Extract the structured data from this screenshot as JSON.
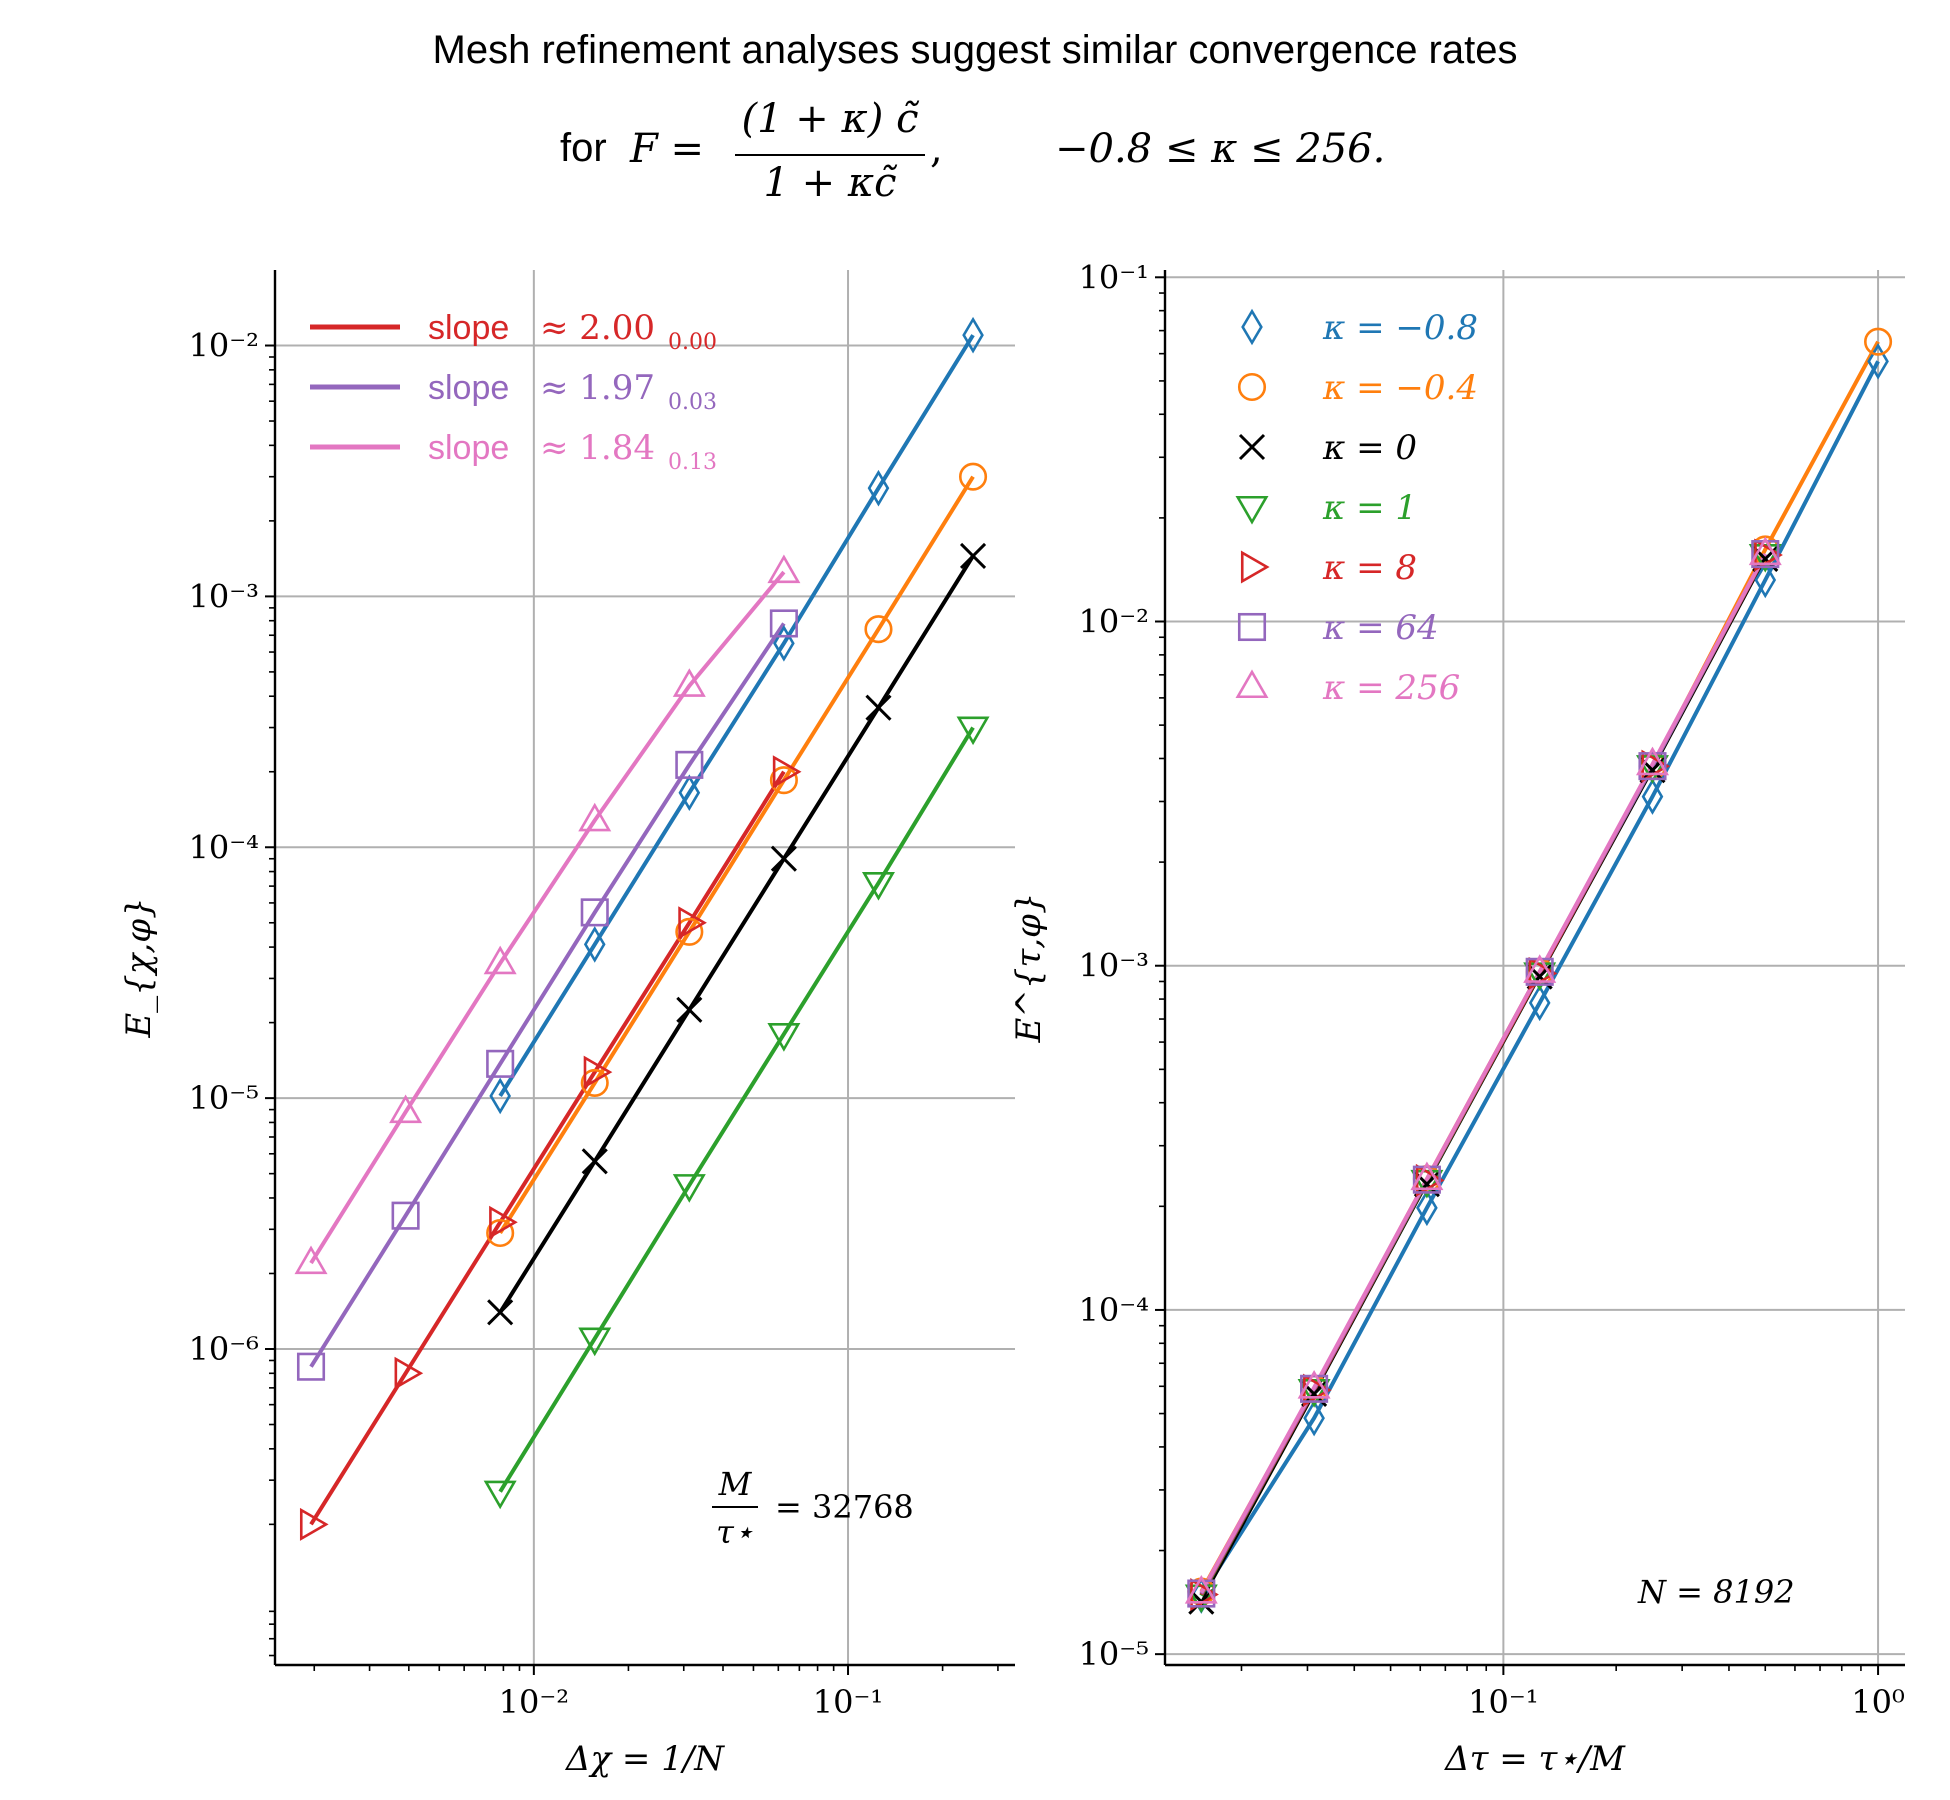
{
  "title": {
    "line1": "Mesh refinement analyses suggest similar convergence rates",
    "for_word": "for",
    "F_lhs": "F =",
    "num": "(1 + κ) c̃",
    "den": "1 + κc̃",
    "comma": ",",
    "range": "−0.8 ≤ κ ≤ 256."
  },
  "colors": {
    "blue": "#1f77b4",
    "orange": "#ff7f0e",
    "black": "#000000",
    "green": "#2ca02c",
    "red": "#d62728",
    "purple": "#9467bd",
    "pink": "#e377c2"
  },
  "chart_data": [
    {
      "type": "scatter",
      "xlabel": "Δχ = 1/N",
      "ylabel": "E_{χ,φ}",
      "xscale": "log",
      "yscale": "log",
      "xlim": [
        0.0015,
        0.34
      ],
      "ylim": [
        5.5e-08,
        0.02
      ],
      "xticks": [
        0.01,
        0.1
      ],
      "xtick_labels": [
        "10⁻²",
        "10⁻¹"
      ],
      "yticks": [
        1e-06,
        1e-05,
        0.0001,
        0.001,
        0.01
      ],
      "ytick_labels": [
        "10⁻⁶",
        "10⁻⁵",
        "10⁻⁴",
        "10⁻³",
        "10⁻²"
      ],
      "grid": true,
      "annotation": {
        "num": "M",
        "den": "τ⋆",
        "rhs": "= 32768"
      },
      "legend": {
        "placement": "upper-left",
        "entries": [
          {
            "label": "slope",
            "value": "≈ 2.00",
            "sub": "0.00",
            "color": "#d62728"
          },
          {
            "label": "slope",
            "value": "≈ 1.97",
            "sub": "0.03",
            "color": "#9467bd"
          },
          {
            "label": "slope",
            "value": "≈ 1.84",
            "sub": "0.13",
            "color": "#e377c2"
          }
        ]
      },
      "series": [
        {
          "marker": "diamond",
          "color": "#1f77b4",
          "x": [
            0.0078125,
            0.015625,
            0.03125,
            0.0625,
            0.125,
            0.25
          ],
          "y": [
            1.02e-05,
            4.1e-05,
            0.000165,
            0.00065,
            0.0027,
            0.011
          ]
        },
        {
          "marker": "circle",
          "color": "#ff7f0e",
          "x": [
            0.0078125,
            0.015625,
            0.03125,
            0.0625,
            0.125,
            0.25
          ],
          "y": [
            2.9e-06,
            1.15e-05,
            4.6e-05,
            0.000185,
            0.00074,
            0.003
          ]
        },
        {
          "marker": "x",
          "color": "#000000",
          "x": [
            0.0078125,
            0.015625,
            0.03125,
            0.0625,
            0.125,
            0.25
          ],
          "y": [
            1.4e-06,
            5.6e-06,
            2.25e-05,
            9e-05,
            0.00036,
            0.00145
          ]
        },
        {
          "marker": "triangle-down",
          "color": "#2ca02c",
          "x": [
            0.0078125,
            0.015625,
            0.03125,
            0.0625,
            0.125,
            0.25
          ],
          "y": [
            2.7e-07,
            1.1e-06,
            4.5e-06,
            1.8e-05,
            7.2e-05,
            0.0003
          ]
        },
        {
          "marker": "triangle-right",
          "color": "#d62728",
          "x": [
            0.001953125,
            0.00390625,
            0.0078125,
            0.015625,
            0.03125,
            0.0625
          ],
          "y": [
            2e-07,
            8e-07,
            3.2e-06,
            1.27e-05,
            5e-05,
            0.0002
          ]
        },
        {
          "marker": "square",
          "color": "#9467bd",
          "x": [
            0.001953125,
            0.00390625,
            0.0078125,
            0.015625,
            0.03125,
            0.0625
          ],
          "y": [
            8.5e-07,
            3.4e-06,
            1.37e-05,
            5.5e-05,
            0.000213,
            0.00078
          ]
        },
        {
          "marker": "triangle-up",
          "color": "#e377c2",
          "x": [
            0.001953125,
            0.00390625,
            0.0078125,
            0.015625,
            0.03125,
            0.0625
          ],
          "y": [
            2.2e-06,
            8.8e-06,
            3.45e-05,
            0.000128,
            0.00044,
            0.00125
          ]
        }
      ]
    },
    {
      "type": "scatter",
      "xlabel": "Δτ = τ⋆/M",
      "ylabel": "E^{τ,φ}",
      "xscale": "log",
      "yscale": "log",
      "xlim": [
        0.0125,
        1.18
      ],
      "ylim": [
        9.3e-06,
        0.105
      ],
      "xticks": [
        0.1,
        1
      ],
      "xtick_labels": [
        "10⁻¹",
        "10⁰"
      ],
      "yticks": [
        1e-05,
        0.0001,
        0.001,
        0.01,
        0.1
      ],
      "ytick_labels": [
        "10⁻⁵",
        "10⁻⁴",
        "10⁻³",
        "10⁻²",
        "10⁻¹"
      ],
      "grid": true,
      "annotation": {
        "rhs": "N = 8192"
      },
      "legend": {
        "placement": "upper-left",
        "entries": [
          {
            "label": "κ = −0.8",
            "marker": "diamond",
            "color": "#1f77b4"
          },
          {
            "label": "κ = −0.4",
            "marker": "circle",
            "color": "#ff7f0e"
          },
          {
            "label": "κ = 0",
            "marker": "x",
            "color": "#000000"
          },
          {
            "label": "κ = 1",
            "marker": "triangle-down",
            "color": "#2ca02c"
          },
          {
            "label": "κ = 8",
            "marker": "triangle-right",
            "color": "#d62728"
          },
          {
            "label": "κ = 64",
            "marker": "square",
            "color": "#9467bd"
          },
          {
            "label": "κ = 256",
            "marker": "triangle-up",
            "color": "#e377c2"
          }
        ]
      },
      "series": [
        {
          "name": "κ = −0.8",
          "marker": "diamond",
          "color": "#1f77b4",
          "x": [
            0.015625,
            0.03125,
            0.0625,
            0.125,
            0.25,
            0.5,
            1
          ],
          "y": [
            1.48e-05,
            4.85e-05,
            0.000198,
            0.00078,
            0.0031,
            0.0132,
            0.057
          ]
        },
        {
          "name": "κ = −0.4",
          "marker": "circle",
          "color": "#ff7f0e",
          "x": [
            0.015625,
            0.03125,
            0.0625,
            0.125,
            0.25,
            0.5,
            1
          ],
          "y": [
            1.52e-05,
            5.9e-05,
            0.00024,
            0.00096,
            0.0038,
            0.0162,
            0.065
          ]
        },
        {
          "name": "κ = 0",
          "marker": "x",
          "color": "#000000",
          "x": [
            0.015625,
            0.03125,
            0.0625,
            0.125,
            0.25,
            0.5
          ],
          "y": [
            1.42e-05,
            5.7e-05,
            0.000232,
            0.00093,
            0.0037,
            0.0152
          ]
        },
        {
          "name": "κ = 1",
          "marker": "triangle-down",
          "color": "#2ca02c",
          "x": [
            0.015625,
            0.03125,
            0.0625,
            0.125,
            0.25,
            0.5
          ],
          "y": [
            1.48e-05,
            5.85e-05,
            0.000237,
            0.00095,
            0.0038,
            0.0156
          ]
        },
        {
          "name": "κ = 8",
          "marker": "triangle-right",
          "color": "#d62728",
          "x": [
            0.015625,
            0.03125,
            0.0625,
            0.125,
            0.25,
            0.5
          ],
          "y": [
            1.49e-05,
            5.85e-05,
            0.000238,
            0.00095,
            0.0038,
            0.0156
          ]
        },
        {
          "name": "κ = 64",
          "marker": "square",
          "color": "#9467bd",
          "x": [
            0.015625,
            0.03125,
            0.0625,
            0.125,
            0.25,
            0.5
          ],
          "y": [
            1.5e-05,
            5.9e-05,
            0.000239,
            0.00096,
            0.0038,
            0.0157
          ]
        },
        {
          "name": "κ = 256",
          "marker": "triangle-up",
          "color": "#e377c2",
          "x": [
            0.015625,
            0.03125,
            0.0625,
            0.125,
            0.25,
            0.5
          ],
          "y": [
            1.51e-05,
            5.95e-05,
            0.00024,
            0.00096,
            0.00385,
            0.0157
          ]
        }
      ]
    }
  ]
}
